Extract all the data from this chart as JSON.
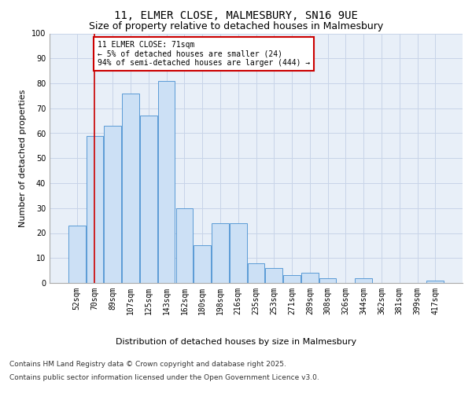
{
  "title_line1": "11, ELMER CLOSE, MALMESBURY, SN16 9UE",
  "title_line2": "Size of property relative to detached houses in Malmesbury",
  "xlabel": "Distribution of detached houses by size in Malmesbury",
  "ylabel": "Number of detached properties",
  "categories": [
    "52sqm",
    "70sqm",
    "89sqm",
    "107sqm",
    "125sqm",
    "143sqm",
    "162sqm",
    "180sqm",
    "198sqm",
    "216sqm",
    "235sqm",
    "253sqm",
    "271sqm",
    "289sqm",
    "308sqm",
    "326sqm",
    "344sqm",
    "362sqm",
    "381sqm",
    "399sqm",
    "417sqm"
  ],
  "values": [
    23,
    59,
    63,
    76,
    67,
    81,
    30,
    15,
    24,
    24,
    8,
    6,
    3,
    4,
    2,
    0,
    2,
    0,
    0,
    0,
    1
  ],
  "bar_color": "#cce0f5",
  "bar_edge_color": "#5b9bd5",
  "grid_color": "#c8d4e8",
  "background_color": "#e8eff8",
  "annotation_text": "11 ELMER CLOSE: 71sqm\n← 5% of detached houses are smaller (24)\n94% of semi-detached houses are larger (444) →",
  "annotation_box_color": "#ffffff",
  "annotation_border_color": "#cc0000",
  "vline_x": 1,
  "vline_color": "#cc0000",
  "ylim": [
    0,
    100
  ],
  "yticks": [
    0,
    10,
    20,
    30,
    40,
    50,
    60,
    70,
    80,
    90,
    100
  ],
  "footer_line1": "Contains HM Land Registry data © Crown copyright and database right 2025.",
  "footer_line2": "Contains public sector information licensed under the Open Government Licence v3.0.",
  "title_fontsize": 10,
  "subtitle_fontsize": 9,
  "axis_label_fontsize": 8,
  "tick_fontsize": 7,
  "annotation_fontsize": 7,
  "footer_fontsize": 6.5
}
